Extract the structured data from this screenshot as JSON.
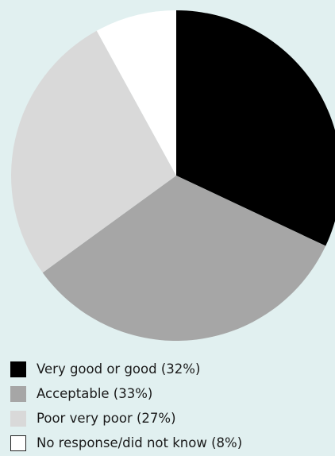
{
  "chart_data": {
    "type": "pie",
    "title": "",
    "legend_position": "bottom",
    "start_angle_deg": 0,
    "direction": "clockwise",
    "slices": [
      {
        "label": "Very good or good (32%)",
        "value": 32,
        "color": "#000000"
      },
      {
        "label": "Acceptable (33%)",
        "value": 33,
        "color": "#a6a6a6"
      },
      {
        "label": "Poor very poor (27%)",
        "value": 27,
        "color": "#d9d9d9"
      },
      {
        "label": "No response/did not know (8%)",
        "value": 8,
        "color": "#ffffff"
      }
    ]
  }
}
